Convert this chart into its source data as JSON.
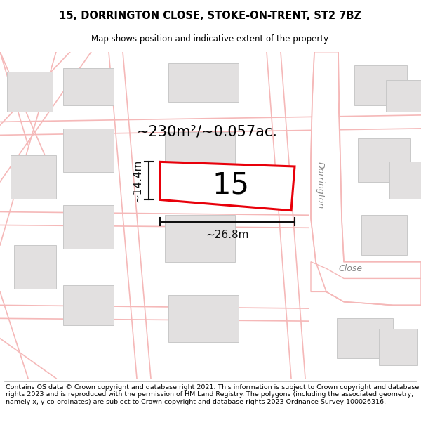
{
  "title": "15, DORRINGTON CLOSE, STOKE-ON-TRENT, ST2 7BZ",
  "subtitle": "Map shows position and indicative extent of the property.",
  "footer": "Contains OS data © Crown copyright and database right 2021. This information is subject to Crown copyright and database rights 2023 and is reproduced with the permission of HM Land Registry. The polygons (including the associated geometry, namely x, y co-ordinates) are subject to Crown copyright and database rights 2023 Ordnance Survey 100026316.",
  "area_label": "~230m²/~0.057ac.",
  "width_label": "~26.8m",
  "height_label": "~14.4m",
  "number_label": "15",
  "map_bg": "#f7f5f5",
  "building_color": "#e2e0e0",
  "building_outline": "#c8c8c8",
  "highlight_color": "#e8000a",
  "road_line_color": "#f5b8b8",
  "street_label_color": "#888888",
  "dim_line_color": "#111111",
  "street_label": "Dorrington Close"
}
